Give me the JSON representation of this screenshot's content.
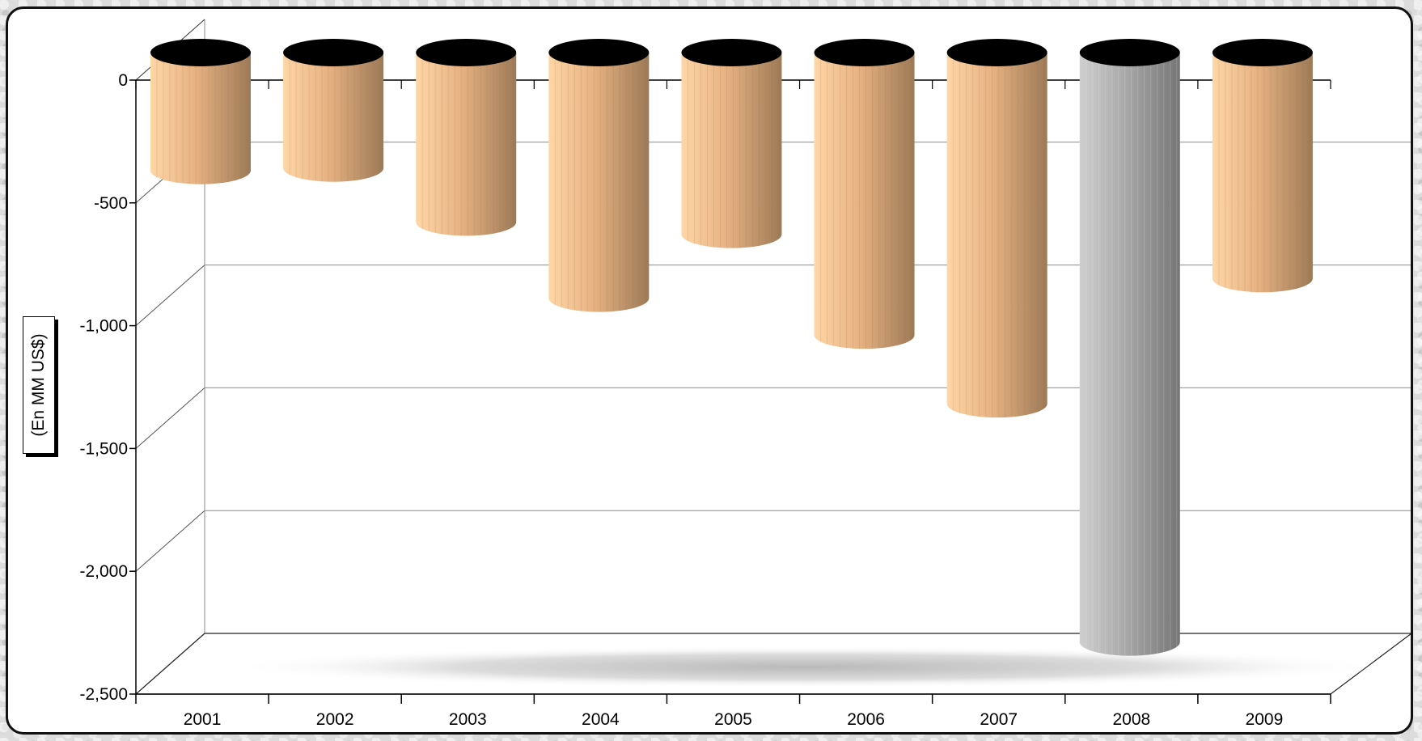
{
  "chart_data": {
    "type": "bar",
    "style": "3d-cylinder",
    "categories": [
      "2001",
      "2002",
      "2003",
      "2004",
      "2005",
      "2006",
      "2007",
      "2008",
      "2009"
    ],
    "values": [
      -480,
      -470,
      -690,
      -1000,
      -740,
      -1150,
      -1430,
      -2400,
      -920
    ],
    "ylabel": "(En MM US$)",
    "xlabel": "",
    "title": "",
    "ylim": [
      -2500,
      0
    ],
    "yticks": [
      0,
      -500,
      -1000,
      -1500,
      -2000,
      -2500
    ],
    "ytick_labels": [
      "0",
      "-500",
      "-1,000",
      "-1,500",
      "-2,000",
      "-2,500"
    ],
    "grid": true,
    "legend": "none",
    "colors": {
      "default_bar": "#f5c089",
      "highlight_bar": "#a8a8a8",
      "bar_top": "#000000",
      "highlight_category": "2008"
    }
  }
}
